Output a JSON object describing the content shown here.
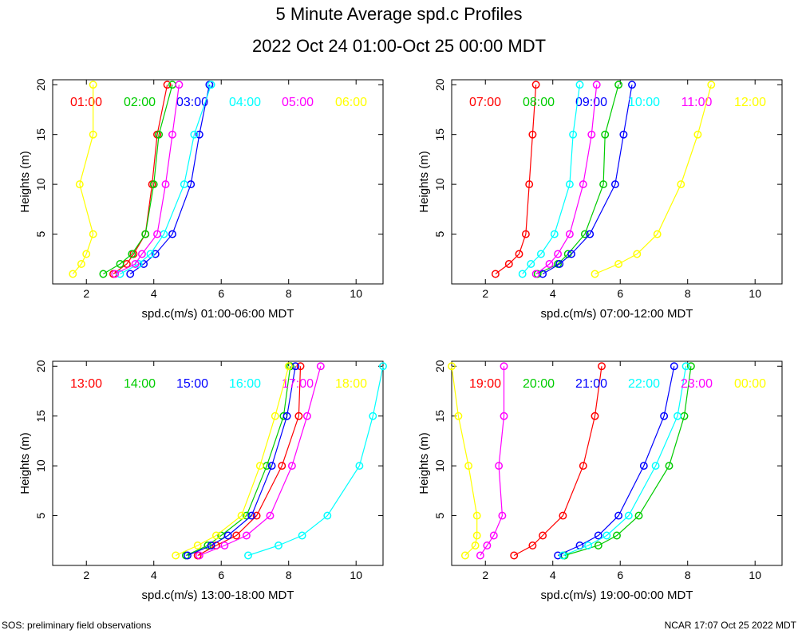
{
  "title": "5 Minute Average spd.c Profiles",
  "subtitle": "2022 Oct 24 01:00-Oct 25 00:00 MDT",
  "footer_left": "SOS: preliminary field observations",
  "footer_right": "NCAR 17:07 Oct 25 2022 MDT",
  "colors": [
    "#ff0000",
    "#00cc00",
    "#0000ff",
    "#00ffff",
    "#ff00ff",
    "#ffff00"
  ],
  "chart_data": [
    {
      "type": "line",
      "xlabel": "spd.c(m/s) 01:00-06:00 MDT",
      "ylabel": "Heights (m)",
      "xlim": [
        1,
        10.8
      ],
      "ylim": [
        0,
        20.5
      ],
      "xticks": [
        2,
        4,
        6,
        8,
        10
      ],
      "yticks": [
        5,
        10,
        15,
        20
      ],
      "heights": [
        1,
        2,
        3,
        5,
        10,
        15,
        20
      ],
      "series": [
        {
          "name": "01:00",
          "x": [
            2.8,
            3.2,
            3.4,
            3.75,
            3.95,
            4.1,
            4.4
          ]
        },
        {
          "name": "02:00",
          "x": [
            2.5,
            3.0,
            3.35,
            3.75,
            4.0,
            4.15,
            4.55
          ]
        },
        {
          "name": "03:00",
          "x": [
            3.3,
            3.7,
            4.05,
            4.55,
            5.1,
            5.35,
            5.65
          ]
        },
        {
          "name": "04:00",
          "x": [
            3.0,
            3.55,
            3.9,
            4.3,
            4.9,
            5.2,
            5.7
          ]
        },
        {
          "name": "05:00",
          "x": [
            2.85,
            3.45,
            3.65,
            4.1,
            4.35,
            4.55,
            4.75
          ]
        },
        {
          "name": "06:00",
          "x": [
            1.6,
            1.85,
            2.0,
            2.2,
            1.8,
            2.2,
            2.2
          ]
        }
      ]
    },
    {
      "type": "line",
      "xlabel": "spd.c(m/s) 07:00-12:00 MDT",
      "ylabel": "Heights (m)",
      "xlim": [
        1,
        10.8
      ],
      "ylim": [
        0,
        20.5
      ],
      "xticks": [
        2,
        4,
        6,
        8,
        10
      ],
      "yticks": [
        5,
        10,
        15,
        20
      ],
      "heights": [
        1,
        2,
        3,
        5,
        10,
        15,
        20
      ],
      "series": [
        {
          "name": "07:00",
          "x": [
            2.3,
            2.7,
            3.0,
            3.2,
            3.3,
            3.4,
            3.5
          ]
        },
        {
          "name": "08:00",
          "x": [
            3.55,
            4.15,
            4.45,
            4.95,
            5.5,
            5.55,
            5.95
          ]
        },
        {
          "name": "09:00",
          "x": [
            3.7,
            4.2,
            4.55,
            5.1,
            5.85,
            6.1,
            6.35
          ]
        },
        {
          "name": "10:00",
          "x": [
            3.1,
            3.35,
            3.65,
            4.05,
            4.5,
            4.6,
            4.8
          ]
        },
        {
          "name": "11:00",
          "x": [
            3.5,
            3.9,
            4.15,
            4.5,
            4.9,
            5.15,
            5.3
          ]
        },
        {
          "name": "12:00",
          "x": [
            5.25,
            5.95,
            6.5,
            7.1,
            7.8,
            8.3,
            8.7
          ]
        }
      ]
    },
    {
      "type": "line",
      "xlabel": "spd.c(m/s) 13:00-18:00 MDT",
      "ylabel": "Heights (m)",
      "xlim": [
        1,
        10.8
      ],
      "ylim": [
        0,
        20.5
      ],
      "xticks": [
        2,
        4,
        6,
        8,
        10
      ],
      "yticks": [
        5,
        10,
        15,
        20
      ],
      "heights": [
        1,
        2,
        3,
        5,
        10,
        15,
        20
      ],
      "series": [
        {
          "name": "13:00",
          "x": [
            5.3,
            5.85,
            6.45,
            7.05,
            7.8,
            8.3,
            8.35
          ]
        },
        {
          "name": "14:00",
          "x": [
            4.95,
            5.6,
            6.0,
            6.75,
            7.35,
            7.85,
            8.05
          ]
        },
        {
          "name": "15:00",
          "x": [
            5.0,
            5.7,
            6.2,
            6.9,
            7.5,
            7.95,
            8.2
          ]
        },
        {
          "name": "16:00",
          "x": [
            6.8,
            7.7,
            8.4,
            9.15,
            10.1,
            10.5,
            10.8
          ]
        },
        {
          "name": "17:00",
          "x": [
            5.35,
            6.1,
            6.75,
            7.45,
            8.1,
            8.55,
            8.95
          ]
        },
        {
          "name": "18:00",
          "x": [
            4.65,
            5.3,
            5.85,
            6.6,
            7.15,
            7.6,
            8.0
          ]
        }
      ]
    },
    {
      "type": "line",
      "xlabel": "spd.c(m/s) 19:00-00:00 MDT",
      "ylabel": "Heights (m)",
      "xlim": [
        1,
        10.8
      ],
      "ylim": [
        0,
        20.5
      ],
      "xticks": [
        2,
        4,
        6,
        8,
        10
      ],
      "yticks": [
        5,
        10,
        15,
        20
      ],
      "heights": [
        1,
        2,
        3,
        5,
        10,
        15,
        20
      ],
      "series": [
        {
          "name": "19:00",
          "x": [
            2.85,
            3.4,
            3.7,
            4.3,
            4.9,
            5.25,
            5.45
          ]
        },
        {
          "name": "20:00",
          "x": [
            4.35,
            5.35,
            5.9,
            6.55,
            7.45,
            7.9,
            8.1
          ]
        },
        {
          "name": "21:00",
          "x": [
            4.15,
            4.8,
            5.35,
            5.95,
            6.7,
            7.3,
            7.6
          ]
        },
        {
          "name": "22:00",
          "x": [
            4.3,
            5.05,
            5.6,
            6.25,
            7.05,
            7.7,
            7.95
          ]
        },
        {
          "name": "23:00",
          "x": [
            1.85,
            2.05,
            2.25,
            2.5,
            2.4,
            2.55,
            2.55
          ]
        },
        {
          "name": "00:00",
          "x": [
            1.4,
            1.7,
            1.75,
            1.75,
            1.5,
            1.2,
            1.0
          ]
        }
      ]
    }
  ]
}
